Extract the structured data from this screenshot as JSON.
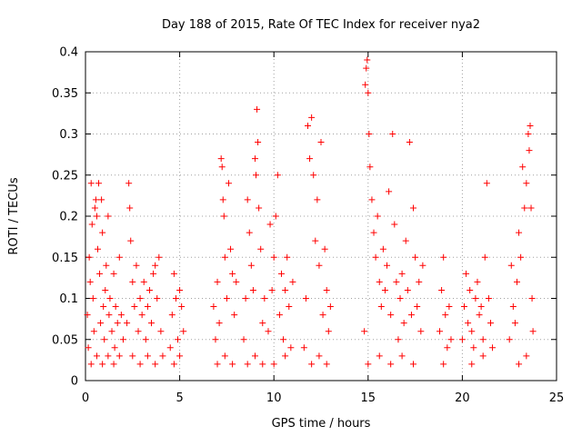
{
  "chart_data": {
    "type": "scatter",
    "title": "Day 188 of 2015, Rate Of TEC Index for receiver nya2",
    "xlabel": "GPS time / hours",
    "ylabel": "ROTI / TECUs",
    "xlim": [
      0,
      25
    ],
    "ylim": [
      0,
      0.4
    ],
    "xticks": [
      0,
      5,
      10,
      15,
      20,
      25
    ],
    "xtick_labels": [
      "0",
      "5",
      "10",
      "15",
      "20",
      "25"
    ],
    "yticks": [
      0,
      0.05,
      0.1,
      0.15,
      0.2,
      0.25,
      0.3,
      0.35,
      0.4
    ],
    "ytick_labels": [
      "0",
      "0.05",
      "0.1",
      "0.15",
      "0.2",
      "0.25",
      "0.3",
      "0.35",
      "0.4"
    ],
    "grid": true,
    "marker": "+",
    "color": "#ff0000",
    "series": [
      {
        "name": "ROTI",
        "points": [
          [
            0.1,
            0.08
          ],
          [
            0.15,
            0.04
          ],
          [
            0.2,
            0.15
          ],
          [
            0.25,
            0.12
          ],
          [
            0.3,
            0.24
          ],
          [
            0.35,
            0.19
          ],
          [
            0.4,
            0.1
          ],
          [
            0.45,
            0.06
          ],
          [
            0.5,
            0.21
          ],
          [
            0.55,
            0.22
          ],
          [
            0.6,
            0.2
          ],
          [
            0.65,
            0.16
          ],
          [
            0.7,
            0.24
          ],
          [
            0.75,
            0.13
          ],
          [
            0.8,
            0.07
          ],
          [
            0.85,
            0.22
          ],
          [
            0.9,
            0.18
          ],
          [
            0.95,
            0.09
          ],
          [
            1.0,
            0.05
          ],
          [
            1.05,
            0.11
          ],
          [
            1.1,
            0.14
          ],
          [
            1.2,
            0.2
          ],
          [
            1.25,
            0.08
          ],
          [
            1.3,
            0.1
          ],
          [
            1.4,
            0.06
          ],
          [
            1.5,
            0.13
          ],
          [
            1.55,
            0.04
          ],
          [
            1.6,
            0.09
          ],
          [
            1.7,
            0.07
          ],
          [
            1.8,
            0.15
          ],
          [
            1.9,
            0.08
          ],
          [
            2.0,
            0.05
          ],
          [
            0.3,
            0.02
          ],
          [
            0.6,
            0.03
          ],
          [
            0.9,
            0.02
          ],
          [
            1.2,
            0.03
          ],
          [
            1.5,
            0.02
          ],
          [
            1.8,
            0.03
          ],
          [
            2.2,
            0.07
          ],
          [
            2.3,
            0.24
          ],
          [
            2.35,
            0.21
          ],
          [
            2.4,
            0.17
          ],
          [
            2.5,
            0.12
          ],
          [
            2.6,
            0.09
          ],
          [
            2.7,
            0.14
          ],
          [
            2.8,
            0.06
          ],
          [
            2.9,
            0.1
          ],
          [
            3.0,
            0.08
          ],
          [
            3.1,
            0.12
          ],
          [
            3.2,
            0.05
          ],
          [
            3.3,
            0.09
          ],
          [
            3.4,
            0.11
          ],
          [
            3.5,
            0.07
          ],
          [
            3.6,
            0.13
          ],
          [
            3.7,
            0.14
          ],
          [
            3.8,
            0.1
          ],
          [
            3.9,
            0.15
          ],
          [
            4.0,
            0.06
          ],
          [
            2.5,
            0.03
          ],
          [
            2.9,
            0.02
          ],
          [
            3.3,
            0.03
          ],
          [
            3.7,
            0.02
          ],
          [
            4.1,
            0.03
          ],
          [
            4.5,
            0.04
          ],
          [
            4.6,
            0.08
          ],
          [
            4.7,
            0.13
          ],
          [
            4.8,
            0.1
          ],
          [
            4.9,
            0.05
          ],
          [
            5.0,
            0.11
          ],
          [
            5.1,
            0.09
          ],
          [
            5.2,
            0.06
          ],
          [
            4.7,
            0.02
          ],
          [
            5.0,
            0.03
          ],
          [
            6.8,
            0.09
          ],
          [
            6.9,
            0.05
          ],
          [
            7.0,
            0.12
          ],
          [
            7.1,
            0.07
          ],
          [
            7.2,
            0.27
          ],
          [
            7.25,
            0.26
          ],
          [
            7.3,
            0.22
          ],
          [
            7.35,
            0.2
          ],
          [
            7.4,
            0.15
          ],
          [
            7.5,
            0.1
          ],
          [
            7.6,
            0.24
          ],
          [
            7.7,
            0.16
          ],
          [
            7.8,
            0.13
          ],
          [
            7.9,
            0.08
          ],
          [
            8.0,
            0.12
          ],
          [
            7.0,
            0.02
          ],
          [
            7.4,
            0.03
          ],
          [
            7.8,
            0.02
          ],
          [
            8.4,
            0.05
          ],
          [
            8.5,
            0.1
          ],
          [
            8.6,
            0.22
          ],
          [
            8.7,
            0.18
          ],
          [
            8.8,
            0.14
          ],
          [
            8.9,
            0.11
          ],
          [
            9.0,
            0.27
          ],
          [
            9.05,
            0.25
          ],
          [
            9.1,
            0.33
          ],
          [
            9.15,
            0.29
          ],
          [
            9.2,
            0.21
          ],
          [
            9.3,
            0.16
          ],
          [
            9.4,
            0.07
          ],
          [
            9.5,
            0.1
          ],
          [
            8.6,
            0.02
          ],
          [
            9.0,
            0.03
          ],
          [
            9.4,
            0.02
          ],
          [
            9.7,
            0.06
          ],
          [
            9.8,
            0.19
          ],
          [
            9.9,
            0.11
          ],
          [
            10.0,
            0.15
          ],
          [
            10.1,
            0.2
          ],
          [
            10.2,
            0.25
          ],
          [
            10.3,
            0.08
          ],
          [
            10.4,
            0.13
          ],
          [
            10.5,
            0.05
          ],
          [
            10.6,
            0.11
          ],
          [
            10.7,
            0.15
          ],
          [
            10.8,
            0.09
          ],
          [
            10.9,
            0.04
          ],
          [
            11.0,
            0.12
          ],
          [
            10.0,
            0.02
          ],
          [
            10.6,
            0.03
          ],
          [
            11.6,
            0.04
          ],
          [
            11.7,
            0.1
          ],
          [
            11.8,
            0.31
          ],
          [
            11.9,
            0.27
          ],
          [
            12.0,
            0.32
          ],
          [
            12.1,
            0.25
          ],
          [
            12.2,
            0.17
          ],
          [
            12.3,
            0.22
          ],
          [
            12.4,
            0.14
          ],
          [
            12.5,
            0.29
          ],
          [
            12.6,
            0.08
          ],
          [
            12.7,
            0.16
          ],
          [
            12.8,
            0.11
          ],
          [
            12.9,
            0.06
          ],
          [
            13.0,
            0.09
          ],
          [
            12.0,
            0.02
          ],
          [
            12.4,
            0.03
          ],
          [
            12.8,
            0.02
          ],
          [
            14.8,
            0.06
          ],
          [
            14.85,
            0.36
          ],
          [
            14.9,
            0.38
          ],
          [
            14.95,
            0.39
          ],
          [
            15.0,
            0.35
          ],
          [
            15.05,
            0.3
          ],
          [
            15.1,
            0.26
          ],
          [
            15.2,
            0.22
          ],
          [
            15.3,
            0.18
          ],
          [
            15.4,
            0.15
          ],
          [
            15.5,
            0.2
          ],
          [
            15.6,
            0.12
          ],
          [
            15.7,
            0.09
          ],
          [
            15.8,
            0.16
          ],
          [
            15.9,
            0.11
          ],
          [
            16.0,
            0.14
          ],
          [
            16.1,
            0.23
          ],
          [
            16.2,
            0.08
          ],
          [
            16.3,
            0.3
          ],
          [
            16.4,
            0.19
          ],
          [
            16.5,
            0.12
          ],
          [
            16.6,
            0.05
          ],
          [
            16.7,
            0.1
          ],
          [
            16.8,
            0.13
          ],
          [
            16.9,
            0.07
          ],
          [
            17.0,
            0.17
          ],
          [
            17.1,
            0.11
          ],
          [
            17.2,
            0.29
          ],
          [
            17.3,
            0.08
          ],
          [
            17.4,
            0.21
          ],
          [
            17.5,
            0.15
          ],
          [
            17.6,
            0.09
          ],
          [
            17.7,
            0.12
          ],
          [
            17.8,
            0.06
          ],
          [
            17.9,
            0.14
          ],
          [
            15.0,
            0.02
          ],
          [
            15.6,
            0.03
          ],
          [
            16.2,
            0.02
          ],
          [
            16.8,
            0.03
          ],
          [
            17.4,
            0.02
          ],
          [
            18.8,
            0.06
          ],
          [
            18.9,
            0.11
          ],
          [
            19.0,
            0.15
          ],
          [
            19.1,
            0.08
          ],
          [
            19.2,
            0.04
          ],
          [
            19.3,
            0.09
          ],
          [
            19.4,
            0.05
          ],
          [
            19.0,
            0.02
          ],
          [
            20.0,
            0.05
          ],
          [
            20.1,
            0.09
          ],
          [
            20.2,
            0.13
          ],
          [
            20.3,
            0.07
          ],
          [
            20.4,
            0.11
          ],
          [
            20.5,
            0.06
          ],
          [
            20.6,
            0.04
          ],
          [
            20.7,
            0.1
          ],
          [
            20.8,
            0.12
          ],
          [
            20.9,
            0.08
          ],
          [
            21.0,
            0.09
          ],
          [
            21.1,
            0.05
          ],
          [
            21.2,
            0.15
          ],
          [
            21.3,
            0.24
          ],
          [
            21.4,
            0.1
          ],
          [
            21.5,
            0.07
          ],
          [
            21.6,
            0.04
          ],
          [
            20.5,
            0.02
          ],
          [
            21.1,
            0.03
          ],
          [
            22.5,
            0.05
          ],
          [
            22.6,
            0.14
          ],
          [
            22.7,
            0.09
          ],
          [
            22.8,
            0.07
          ],
          [
            22.9,
            0.12
          ],
          [
            23.0,
            0.18
          ],
          [
            23.1,
            0.15
          ],
          [
            23.2,
            0.26
          ],
          [
            23.3,
            0.21
          ],
          [
            23.4,
            0.24
          ],
          [
            23.5,
            0.3
          ],
          [
            23.55,
            0.28
          ],
          [
            23.6,
            0.31
          ],
          [
            23.65,
            0.21
          ],
          [
            23.7,
            0.1
          ],
          [
            23.75,
            0.06
          ],
          [
            23.0,
            0.02
          ],
          [
            23.4,
            0.03
          ]
        ]
      }
    ]
  }
}
